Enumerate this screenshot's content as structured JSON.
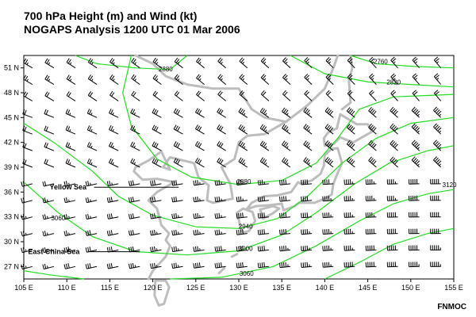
{
  "title_line1": "700 hPa Height (m) and Wind (kt)",
  "title_line2": "NOGAPS Analysis 1200 UTC 01 Mar 2006",
  "credit": "FNMOC",
  "colors": {
    "contour": "#22dd22",
    "coastline": "#bdbdbd",
    "grid": "#000000",
    "barb": "#000000"
  },
  "map": {
    "lon_ticks": [
      "105 E",
      "110 E",
      "115 E",
      "120 E",
      "125 E",
      "130 E",
      "135 E",
      "140 E",
      "145 E",
      "150 E",
      "155 E"
    ],
    "lat_ticks": [
      "51 N",
      "48 N",
      "45 N",
      "42 N",
      "39 N",
      "36 N",
      "33 N",
      "30 N",
      "27 N"
    ],
    "lon_range": [
      105,
      155
    ],
    "lat_range": [
      25.5,
      52.5
    ]
  },
  "contour_labels": [
    {
      "text": "2760",
      "lon": 146.5,
      "lat": 51.5
    },
    {
      "text": "2820",
      "lon": 148.0,
      "lat": 49.0
    },
    {
      "text": "2880",
      "lon": 121.5,
      "lat": 50.6
    },
    {
      "text": "2880",
      "lon": 130.6,
      "lat": 37.0
    },
    {
      "text": "2940",
      "lon": 130.8,
      "lat": 31.6
    },
    {
      "text": "3000",
      "lon": 130.8,
      "lat": 28.9
    },
    {
      "text": "3060",
      "lon": 130.9,
      "lat": 25.9
    },
    {
      "text": "3120",
      "lon": 154.5,
      "lat": 36.6
    },
    {
      "text": "3060",
      "lon": 109.0,
      "lat": 32.6
    }
  ],
  "place_labels": [
    {
      "text": "Yellow Sea",
      "lon": 108.0,
      "lat": 36.3
    },
    {
      "text": "East China Sea",
      "lon": 105.5,
      "lat": 28.5
    }
  ]
}
